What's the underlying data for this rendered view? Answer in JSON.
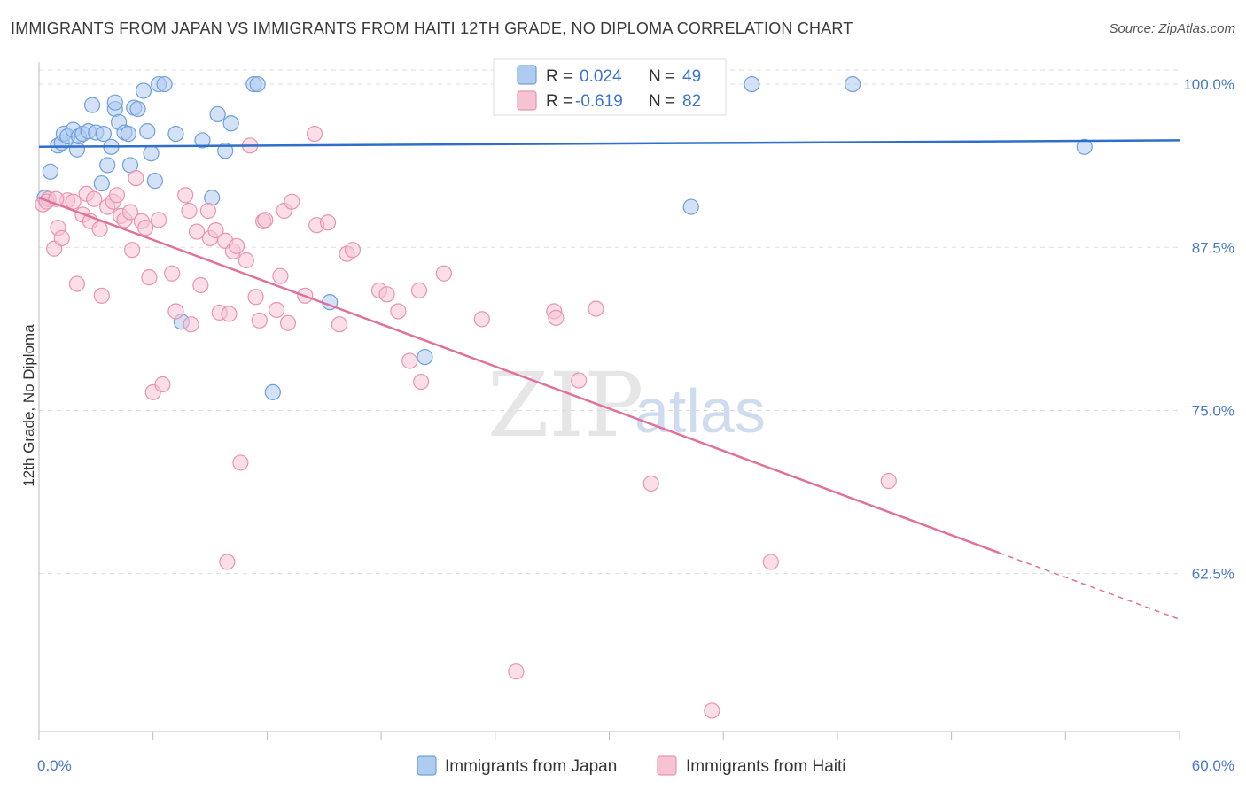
{
  "title": "IMMIGRANTS FROM JAPAN VS IMMIGRANTS FROM HAITI 12TH GRADE, NO DIPLOMA CORRELATION CHART",
  "source": "Source: ZipAtlas.com",
  "watermark": {
    "zip": "ZIP",
    "atlas": "atlas"
  },
  "legend": {
    "r_label": "R =",
    "n_label": "N =",
    "japan": {
      "r": "0.024",
      "n": "49"
    },
    "haiti": {
      "r": "-0.619",
      "n": "82"
    }
  },
  "colors": {
    "japan_fill": "#aecbf0",
    "japan_stroke": "#6f9fdc",
    "japan_line": "#2f6fca",
    "haiti_fill": "#f7c3d3",
    "haiti_stroke": "#e894b0",
    "haiti_line": "#e0719a",
    "tick": "#4a78c8",
    "grid": "#dddddd"
  },
  "chart_data": {
    "type": "scatter",
    "title": "IMMIGRANTS FROM JAPAN VS IMMIGRANTS FROM HAITI 12TH GRADE, NO DIPLOMA CORRELATION CHART",
    "xlabel": "",
    "ylabel": "12th Grade, No Diploma",
    "xlim": [
      0,
      60
    ],
    "ylim": [
      50.4,
      101.7
    ],
    "x_tick_labels": [
      "0.0%",
      "60.0%"
    ],
    "y_ticks": [
      100.0,
      87.5,
      75.0,
      62.5
    ],
    "y_tick_labels": [
      "100.0%",
      "87.5%",
      "75.0%",
      "62.5%"
    ],
    "grid": true,
    "legend_position": "top-center",
    "series": [
      {
        "name": "Immigrants from Japan",
        "R": 0.024,
        "N": 49,
        "trend": {
          "x": [
            0,
            60
          ],
          "y": [
            95.2,
            95.7
          ],
          "dashed_from": null
        },
        "points": [
          [
            0.3,
            91.3
          ],
          [
            0.6,
            93.3
          ],
          [
            1.0,
            95.3
          ],
          [
            1.2,
            95.5
          ],
          [
            1.3,
            96.2
          ],
          [
            1.5,
            96.0
          ],
          [
            1.8,
            96.5
          ],
          [
            2.0,
            95.0
          ],
          [
            2.1,
            96.0
          ],
          [
            2.3,
            96.2
          ],
          [
            2.6,
            96.4
          ],
          [
            2.8,
            98.4
          ],
          [
            3.0,
            96.3
          ],
          [
            3.3,
            92.4
          ],
          [
            3.4,
            96.2
          ],
          [
            3.6,
            93.8
          ],
          [
            3.8,
            95.2
          ],
          [
            4.0,
            98.1
          ],
          [
            4.0,
            98.6
          ],
          [
            4.2,
            97.1
          ],
          [
            4.5,
            96.3
          ],
          [
            4.7,
            96.2
          ],
          [
            4.8,
            93.8
          ],
          [
            5.0,
            98.2
          ],
          [
            5.2,
            98.1
          ],
          [
            5.5,
            99.5
          ],
          [
            5.7,
            96.4
          ],
          [
            5.9,
            94.7
          ],
          [
            6.1,
            92.6
          ],
          [
            6.3,
            100.0
          ],
          [
            6.6,
            100.0
          ],
          [
            7.2,
            96.2
          ],
          [
            7.5,
            81.8
          ],
          [
            8.6,
            95.7
          ],
          [
            9.1,
            91.3
          ],
          [
            9.4,
            97.7
          ],
          [
            9.8,
            94.9
          ],
          [
            10.1,
            97.0
          ],
          [
            11.3,
            100.0
          ],
          [
            11.5,
            100.0
          ],
          [
            12.3,
            76.4
          ],
          [
            15.3,
            83.3
          ],
          [
            20.3,
            79.1
          ],
          [
            28.4,
            100.0
          ],
          [
            31.5,
            100.0
          ],
          [
            34.3,
            90.6
          ],
          [
            37.5,
            100.0
          ],
          [
            42.8,
            100.0
          ],
          [
            55.0,
            95.2
          ]
        ]
      },
      {
        "name": "Immigrants from Haiti",
        "R": -0.619,
        "N": 82,
        "trend": {
          "x": [
            0,
            50.5,
            60
          ],
          "y": [
            91.3,
            64.1,
            59.0
          ],
          "dashed_from": 50.5
        },
        "points": [
          [
            0.2,
            90.8
          ],
          [
            0.5,
            91.2
          ],
          [
            0.8,
            87.4
          ],
          [
            1.0,
            89.0
          ],
          [
            1.2,
            88.2
          ],
          [
            1.5,
            91.1
          ],
          [
            1.8,
            91.0
          ],
          [
            2.0,
            84.7
          ],
          [
            2.3,
            90.0
          ],
          [
            2.5,
            91.6
          ],
          [
            2.7,
            89.5
          ],
          [
            2.9,
            91.2
          ],
          [
            3.2,
            88.9
          ],
          [
            3.3,
            83.8
          ],
          [
            3.6,
            90.6
          ],
          [
            3.9,
            91.0
          ],
          [
            4.1,
            91.5
          ],
          [
            4.3,
            89.9
          ],
          [
            4.5,
            89.6
          ],
          [
            4.8,
            90.2
          ],
          [
            4.9,
            87.3
          ],
          [
            5.1,
            92.8
          ],
          [
            5.4,
            89.5
          ],
          [
            5.6,
            89.0
          ],
          [
            5.8,
            85.2
          ],
          [
            6.0,
            76.4
          ],
          [
            6.3,
            89.6
          ],
          [
            6.5,
            77.0
          ],
          [
            7.0,
            85.5
          ],
          [
            7.2,
            82.6
          ],
          [
            7.7,
            91.5
          ],
          [
            7.9,
            90.3
          ],
          [
            8.0,
            81.6
          ],
          [
            8.3,
            88.7
          ],
          [
            8.5,
            84.6
          ],
          [
            8.9,
            90.3
          ],
          [
            9.0,
            88.2
          ],
          [
            9.3,
            88.8
          ],
          [
            9.5,
            82.5
          ],
          [
            9.8,
            88.0
          ],
          [
            10.0,
            82.4
          ],
          [
            10.2,
            87.2
          ],
          [
            10.4,
            87.6
          ],
          [
            10.6,
            71.0
          ],
          [
            10.9,
            86.5
          ],
          [
            11.1,
            95.3
          ],
          [
            11.4,
            83.7
          ],
          [
            11.6,
            81.9
          ],
          [
            11.8,
            89.5
          ],
          [
            11.9,
            89.6
          ],
          [
            12.5,
            82.7
          ],
          [
            12.7,
            85.3
          ],
          [
            12.9,
            90.3
          ],
          [
            13.1,
            81.7
          ],
          [
            13.3,
            91.0
          ],
          [
            14.0,
            83.8
          ],
          [
            14.5,
            96.2
          ],
          [
            14.6,
            89.2
          ],
          [
            15.2,
            89.4
          ],
          [
            15.8,
            81.6
          ],
          [
            16.2,
            87.0
          ],
          [
            16.5,
            87.3
          ],
          [
            17.9,
            84.2
          ],
          [
            18.3,
            83.9
          ],
          [
            18.9,
            82.6
          ],
          [
            19.5,
            78.8
          ],
          [
            20.0,
            84.2
          ],
          [
            20.1,
            77.2
          ],
          [
            21.3,
            85.5
          ],
          [
            23.3,
            82.0
          ],
          [
            25.1,
            55.0
          ],
          [
            27.1,
            82.6
          ],
          [
            27.2,
            82.1
          ],
          [
            28.4,
            77.3
          ],
          [
            29.3,
            82.8
          ],
          [
            32.2,
            69.4
          ],
          [
            35.4,
            52.0
          ],
          [
            38.5,
            63.4
          ],
          [
            44.7,
            69.6
          ],
          [
            9.9,
            63.4
          ],
          [
            0.4,
            91.0
          ],
          [
            0.9,
            91.2
          ]
        ]
      }
    ]
  },
  "bottom_legend": {
    "japan": "Immigrants from Japan",
    "haiti": "Immigrants from Haiti"
  }
}
